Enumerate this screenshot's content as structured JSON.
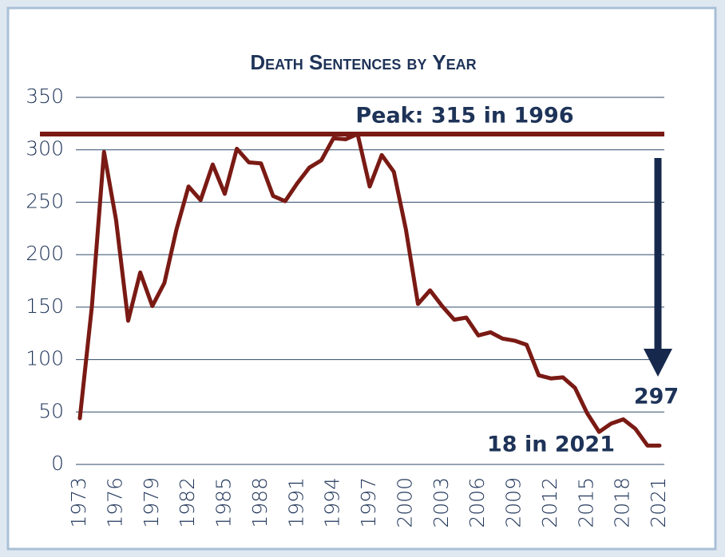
{
  "chart_data": {
    "type": "line",
    "title": "Death Sentences by Year",
    "x": [
      1973,
      1974,
      1975,
      1976,
      1977,
      1978,
      1979,
      1980,
      1981,
      1982,
      1983,
      1984,
      1985,
      1986,
      1987,
      1988,
      1989,
      1990,
      1991,
      1992,
      1993,
      1994,
      1995,
      1996,
      1997,
      1998,
      1999,
      2000,
      2001,
      2002,
      2003,
      2004,
      2005,
      2006,
      2007,
      2008,
      2009,
      2010,
      2011,
      2012,
      2013,
      2014,
      2015,
      2016,
      2017,
      2018,
      2019,
      2020,
      2021
    ],
    "series": [
      {
        "name": "Death sentences",
        "color": "#7a1a14",
        "values": [
          44,
          151,
          298,
          233,
          137,
          183,
          151,
          173,
          224,
          265,
          252,
          286,
          258,
          301,
          288,
          287,
          256,
          251,
          268,
          283,
          290,
          311,
          310,
          315,
          265,
          295,
          279,
          224,
          153,
          166,
          151,
          138,
          140,
          123,
          126,
          120,
          118,
          114,
          85,
          82,
          83,
          73,
          49,
          31,
          39,
          43,
          34,
          18,
          18
        ]
      }
    ],
    "xlim": [
      1973,
      2021
    ],
    "xticks": [
      1973,
      1976,
      1979,
      1982,
      1985,
      1988,
      1991,
      1994,
      1997,
      2000,
      2003,
      2006,
      2009,
      2012,
      2015,
      2018,
      2021
    ],
    "ylim": [
      0,
      350
    ],
    "yticks": [
      0,
      50,
      100,
      150,
      200,
      250,
      300,
      350
    ],
    "grid": true,
    "peak_line": 315,
    "peak_color": "#7a1a14",
    "annotations": [
      "Peak: 315 in 1996",
      "297",
      "18 in 2021"
    ]
  }
}
